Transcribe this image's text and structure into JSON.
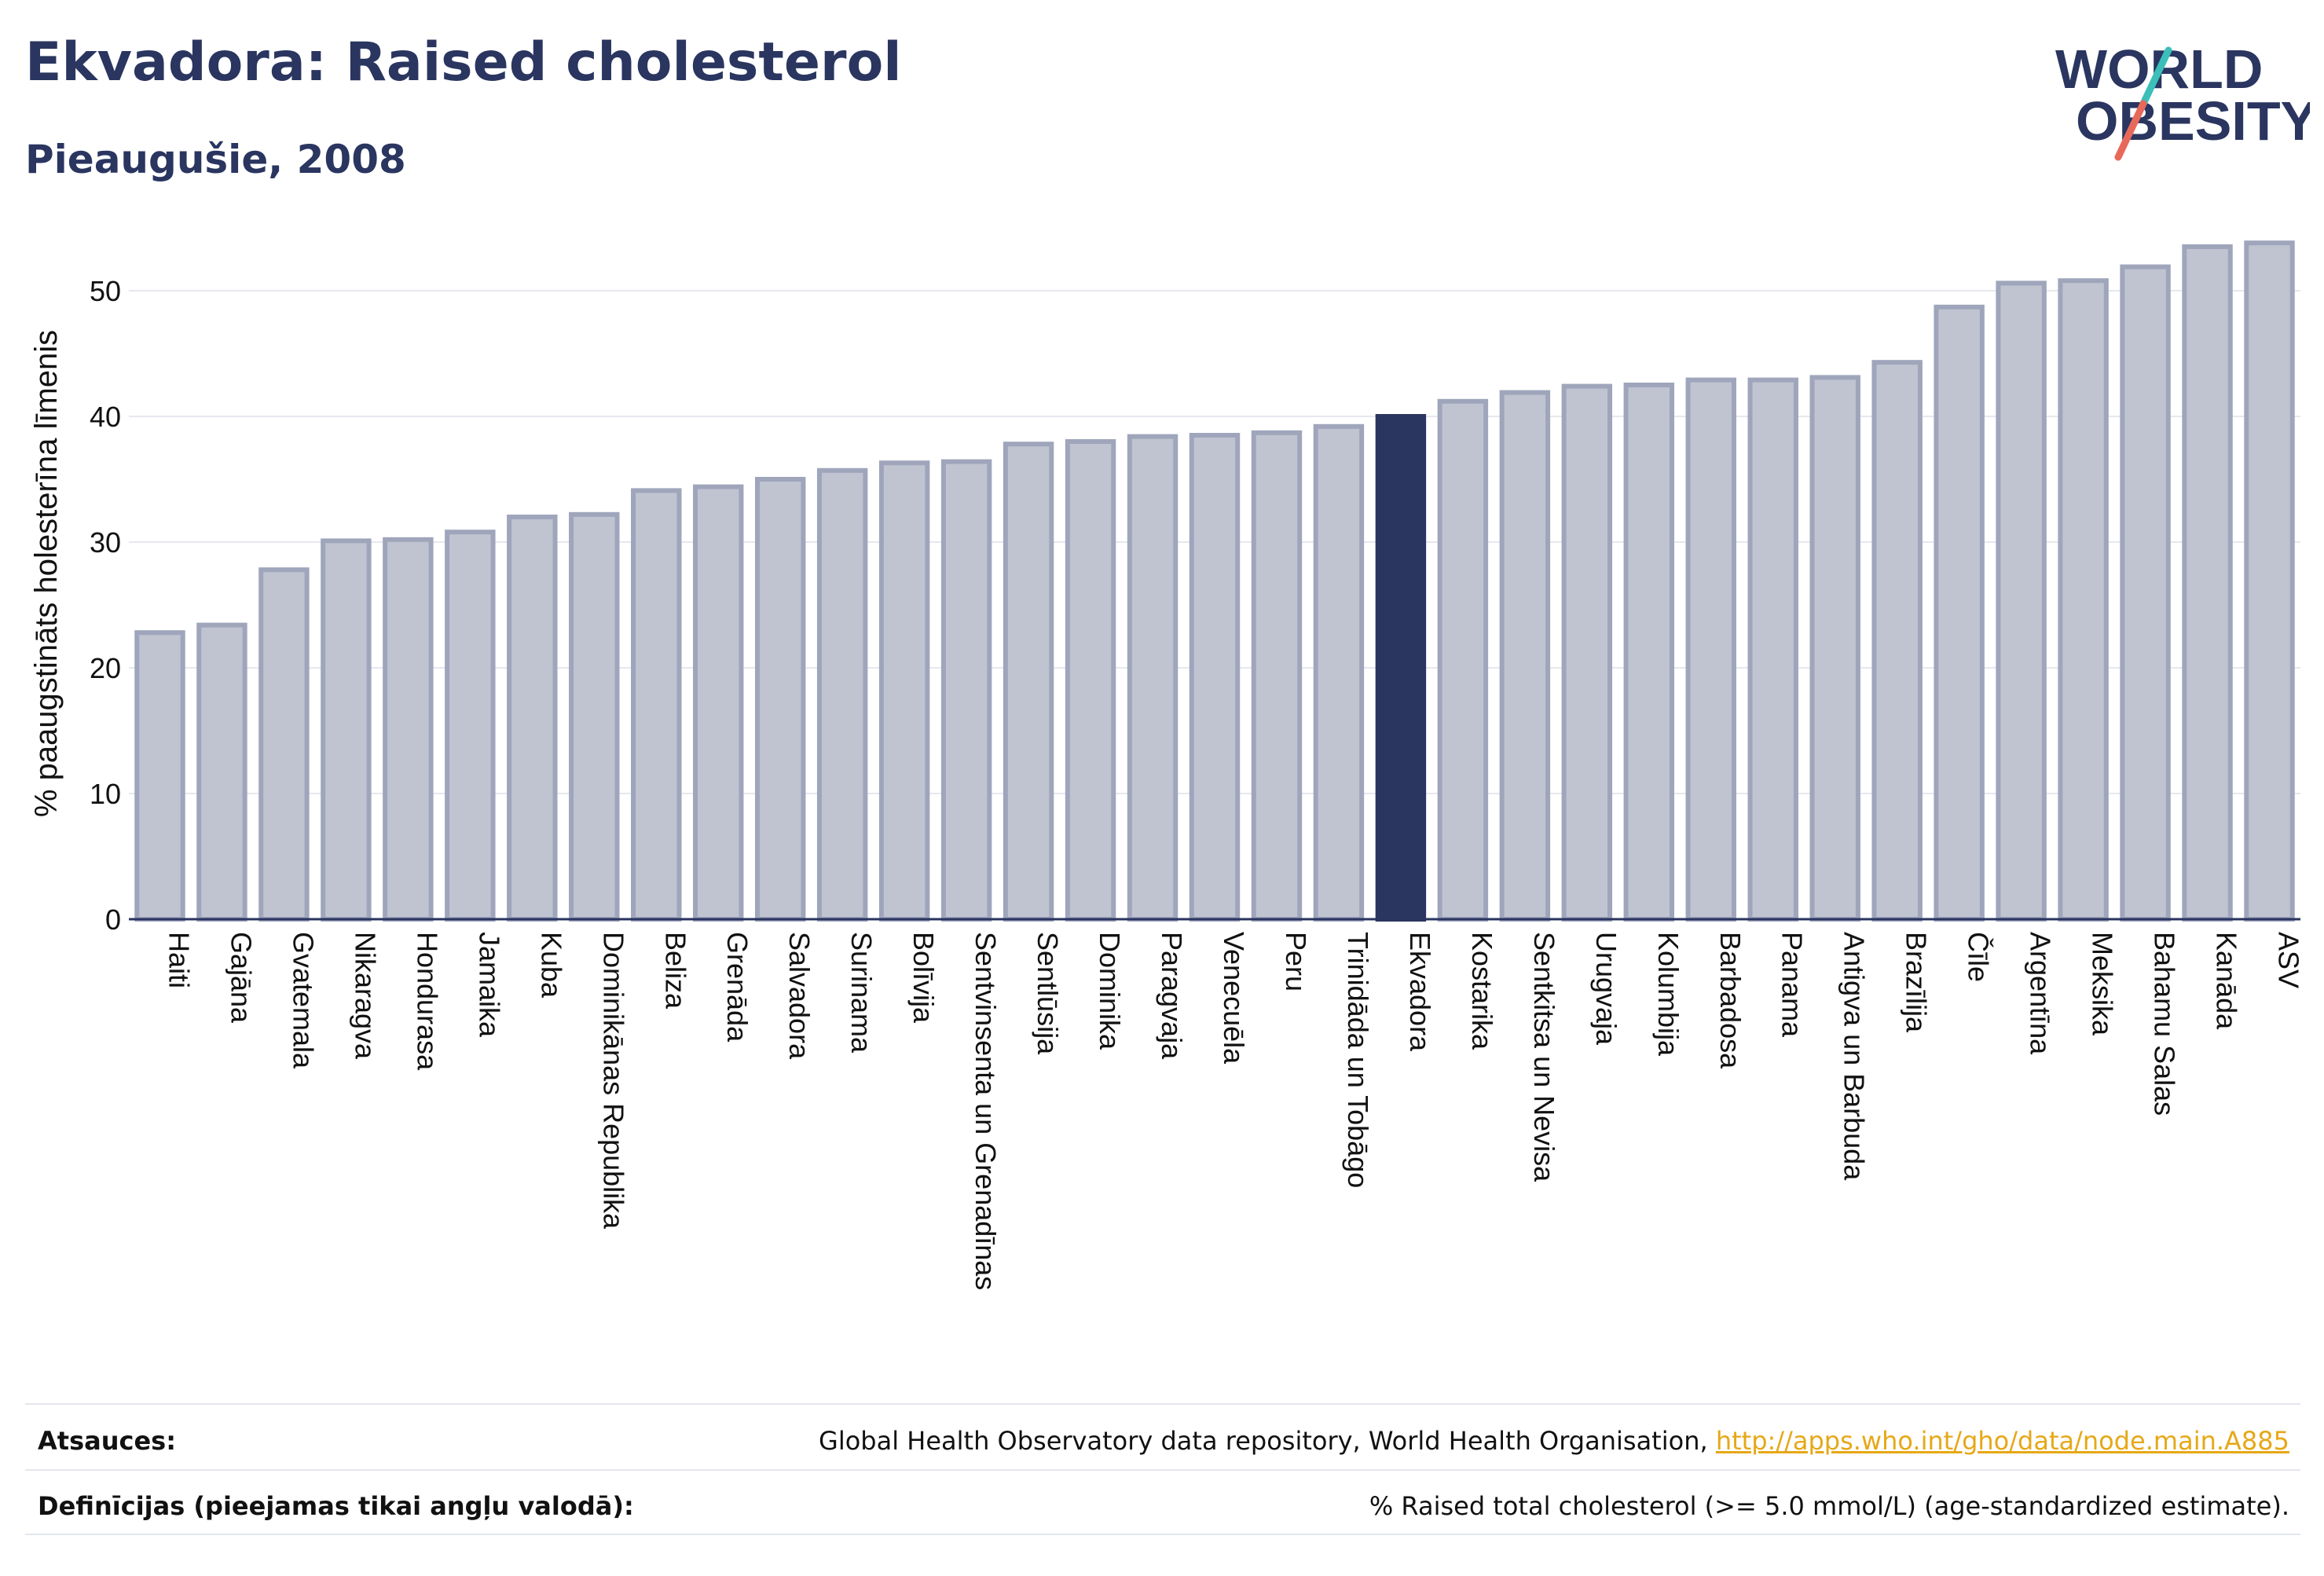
{
  "header": {
    "title": "Ekvadora: Raised cholesterol",
    "subtitle": "Pieaugušie, 2008"
  },
  "logo": {
    "line1": "WORLD",
    "line2": "OBESITY",
    "colors": {
      "text": "#2a3560",
      "slash_top": "#3bbfb8",
      "slash_bottom": "#e8695a"
    }
  },
  "colors": {
    "bar_fill": "#c0c4d1",
    "bar_stroke": "#9fa5bb",
    "highlight": "#2a3560",
    "grid": "#e6e8ee",
    "axis": "#2a3560"
  },
  "chart_data": {
    "type": "bar",
    "ylabel": "% paaugstināts holesterīna līmenis",
    "xlabel": "",
    "ylim": [
      0,
      55
    ],
    "yticks": [
      0,
      10,
      20,
      30,
      40,
      50
    ],
    "grid": true,
    "highlight": "Ekvadora",
    "categories": [
      "Haiti",
      "Gajāna",
      "Gvatemala",
      "Nikaragva",
      "Hondurasa",
      "Jamaika",
      "Kuba",
      "Dominikānas Republika",
      "Beliza",
      "Grenāda",
      "Salvadora",
      "Surinama",
      "Bolīvija",
      "Sentvinsenta un Grenadīnas",
      "Sentlūsija",
      "Dominika",
      "Paragvaja",
      "Venecuēla",
      "Peru",
      "Trinidāda un Tobāgo",
      "Ekvadora",
      "Kostarika",
      "Sentkitsa un Nevisa",
      "Urugvaja",
      "Kolumbija",
      "Barbadosa",
      "Panama",
      "Antigva un Barbuda",
      "Brazīlija",
      "Čīle",
      "Argentīna",
      "Meksika",
      "Bahamu Salas",
      "Kanāda",
      "ASV"
    ],
    "values": [
      22.8,
      23.4,
      27.8,
      30.1,
      30.2,
      30.8,
      32.0,
      32.2,
      34.1,
      34.4,
      35.0,
      35.7,
      36.3,
      36.4,
      37.8,
      38.0,
      38.4,
      38.5,
      38.7,
      39.2,
      40.0,
      41.2,
      41.9,
      42.4,
      42.5,
      42.9,
      42.9,
      43.1,
      44.3,
      48.7,
      50.6,
      50.8,
      51.9,
      53.5,
      53.8
    ]
  },
  "footer": {
    "sources_label": "Atsauces:",
    "sources_text": "Global Health Observatory data repository, World Health Organisation, ",
    "sources_link": "http://apps.who.int/gho/data/node.main.A885",
    "definitions_label": "Definīcijas (pieejamas tikai angļu valodā):",
    "definitions_text": "% Raised total cholesterol (>= 5.0 mmol/L) (age-standardized estimate)."
  }
}
